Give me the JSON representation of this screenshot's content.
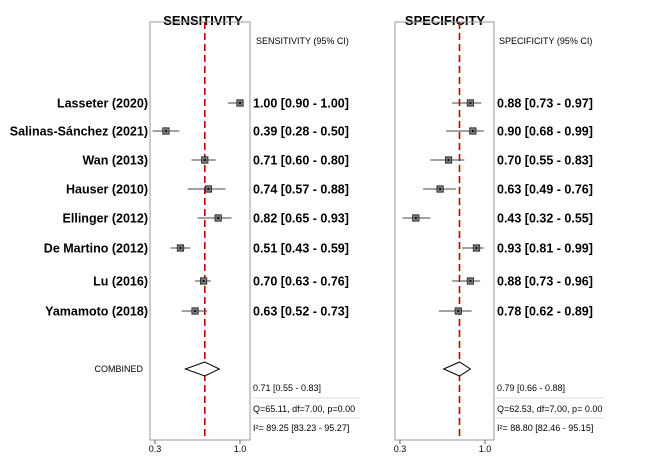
{
  "chart_data": {
    "type": "forest",
    "studies": [
      "Lasseter (2020)",
      "Salinas-Sánchez (2021)",
      "Wan (2013)",
      "Hauser (2010)",
      "Ellinger (2012)",
      "De Martino (2012)",
      "Lu (2016)",
      "Yamamoto (2018)"
    ],
    "combined_label": "COMBINED",
    "x_ticks": [
      "0.3",
      "1.0"
    ],
    "xlim": [
      0.3,
      1.0
    ],
    "panels": [
      {
        "title": "SENSITIVITY",
        "header": "SENSITIVITY (95% CI)",
        "values": [
          1.0,
          0.39,
          0.71,
          0.74,
          0.82,
          0.51,
          0.7,
          0.63
        ],
        "ci_low": [
          0.9,
          0.28,
          0.6,
          0.57,
          0.65,
          0.43,
          0.63,
          0.52
        ],
        "ci_high": [
          1.0,
          0.5,
          0.8,
          0.88,
          0.93,
          0.59,
          0.76,
          0.73
        ],
        "ci_labels": [
          "1.00 [0.90 - 1.00]",
          "0.39 [0.28 - 0.50]",
          "0.71 [0.60 - 0.80]",
          "0.74 [0.57 - 0.88]",
          "0.82 [0.65 - 0.93]",
          "0.51 [0.43 - 0.59]",
          "0.70 [0.63 - 0.76]",
          "0.63 [0.52 - 0.73]"
        ],
        "combined": {
          "value": 0.71,
          "low": 0.55,
          "high": 0.83
        },
        "combined_label": "0.71 [0.55 - 0.83]",
        "q_label": "Q=65.11, df=7.00, p=0.00",
        "i2_label": "I²= 89.25 [83.23 - 95.27]",
        "line_color": "#c00000"
      },
      {
        "title": "SPECIFICITY",
        "header": "SPECIFICITY (95% CI)",
        "values": [
          0.88,
          0.9,
          0.7,
          0.63,
          0.43,
          0.93,
          0.88,
          0.78
        ],
        "ci_low": [
          0.73,
          0.68,
          0.55,
          0.49,
          0.32,
          0.81,
          0.73,
          0.62
        ],
        "ci_high": [
          0.97,
          0.99,
          0.83,
          0.76,
          0.55,
          0.99,
          0.96,
          0.89
        ],
        "ci_labels": [
          "0.88 [0.73 - 0.97]",
          "0.90 [0.68 - 0.99]",
          "0.70 [0.55 - 0.83]",
          "0.63 [0.49 - 0.76]",
          "0.43 [0.32 - 0.55]",
          "0.93 [0.81 - 0.99]",
          "0.88 [0.73 - 0.96]",
          "0.78 [0.62 - 0.89]"
        ],
        "combined": {
          "value": 0.79,
          "low": 0.66,
          "high": 0.88
        },
        "combined_label": "0.79 [0.66 - 0.88]",
        "q_label": "Q=62.53, df=7.00, p= 0.00",
        "i2_label": "I²= 88.80 [82.46 - 95.15]",
        "line_color": "#c00000"
      }
    ]
  }
}
